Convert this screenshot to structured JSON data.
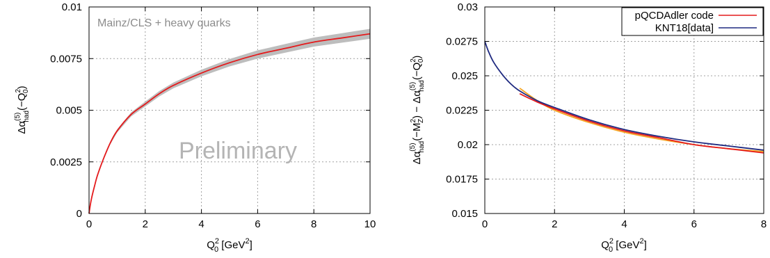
{
  "chart_data": [
    {
      "type": "line",
      "annotation": "Mainz/CLS + heavy quarks",
      "watermark": "Preliminary",
      "xlim": [
        0,
        10
      ],
      "ylim": [
        0,
        0.01
      ],
      "xticks": [
        "0",
        "2",
        "4",
        "6",
        "8",
        "10"
      ],
      "yticks": [
        "0",
        "0.0025",
        "0.005",
        "0.0075",
        "0.01"
      ],
      "grid": true,
      "series": [
        {
          "color": "#e41a1c",
          "band_color": "#bdbdbd",
          "x": [
            0,
            0.05,
            0.1,
            0.2,
            0.3,
            0.5,
            0.75,
            1.0,
            1.5,
            2.0,
            2.5,
            3.0,
            4.0,
            5.0,
            6.0,
            7.0,
            8.0,
            9.0,
            10.0
          ],
          "y": [
            0,
            0.00045,
            0.0008,
            0.00135,
            0.00185,
            0.0026,
            0.0034,
            0.004,
            0.0048,
            0.0053,
            0.0058,
            0.0062,
            0.0068,
            0.0073,
            0.0077,
            0.008,
            0.0083,
            0.0085,
            0.0087
          ],
          "band_halfwidth": [
            0,
            2e-05,
            3e-05,
            4e-05,
            5e-05,
            6e-05,
            7e-05,
            8e-05,
            0.0001,
            0.00012,
            0.00013,
            0.00014,
            0.00016,
            0.00018,
            0.0002,
            0.00021,
            0.00022,
            0.00023,
            0.00024
          ]
        }
      ]
    },
    {
      "type": "line",
      "xlim": [
        0,
        8
      ],
      "ylim": [
        0.015,
        0.03
      ],
      "xticks": [
        "0",
        "2",
        "4",
        "6",
        "8"
      ],
      "yticks": [
        "0.015",
        "0.0175",
        "0.02",
        "0.0225",
        "0.025",
        "0.0275",
        "0.03"
      ],
      "grid": true,
      "legend": "top-right",
      "series": [
        {
          "name": "pQCDAdler code",
          "color": "#e41a1c",
          "x": [
            1.0,
            1.5,
            2.0,
            3.0,
            4.0,
            5.0,
            6.0,
            7.0,
            8.0
          ],
          "y": [
            0.0237,
            0.0231,
            0.0226,
            0.0217,
            0.021,
            0.0205,
            0.02,
            0.0197,
            0.0194
          ]
        },
        {
          "name": "KNT18[data]",
          "color": "#1f2a80",
          "x": [
            0,
            0.1,
            0.25,
            0.5,
            0.75,
            1.0,
            1.5,
            2.0,
            3.0,
            4.0,
            5.0,
            6.0,
            7.0,
            8.0
          ],
          "y": [
            0.0275,
            0.0268,
            0.026,
            0.0251,
            0.0244,
            0.0239,
            0.0232,
            0.0227,
            0.0218,
            0.0211,
            0.0206,
            0.0202,
            0.0199,
            0.0196
          ]
        },
        {
          "color": "#f5a623",
          "x": [
            1.0,
            1.5,
            2.0,
            3.0,
            4.0,
            5.0,
            6.0,
            7.0,
            8.0
          ],
          "y": [
            0.0241,
            0.0232,
            0.0225,
            0.0216,
            0.0209,
            0.0204,
            0.02,
            0.0197,
            0.0195
          ]
        }
      ]
    }
  ]
}
